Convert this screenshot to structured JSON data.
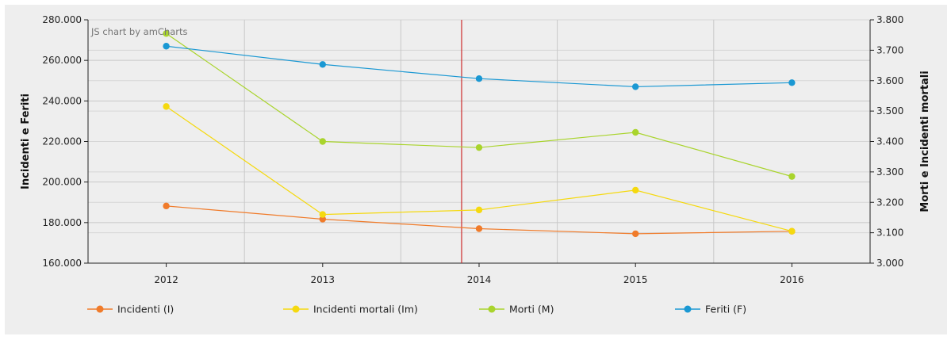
{
  "chart_data": {
    "type": "line",
    "credit": "JS chart by amCharts",
    "categories": [
      "2012",
      "2013",
      "2014",
      "2015",
      "2016"
    ],
    "left_axis": {
      "label": "Incidenti e Feriti",
      "min": 160000,
      "max": 280000,
      "step": 20000,
      "ticks": [
        "160.000",
        "180.000",
        "200.000",
        "220.000",
        "240.000",
        "260.000",
        "280.000"
      ]
    },
    "right_axis": {
      "label": "Morti e Incidenti mortali",
      "min": 3000,
      "max": 3800,
      "step": 100,
      "ticks": [
        "3.000",
        "3.100",
        "3.200",
        "3.300",
        "3.400",
        "3.500",
        "3.600",
        "3.700",
        "3.800"
      ]
    },
    "cursor_category": "2014",
    "grid": true,
    "legend_position": "bottom",
    "series": [
      {
        "name": "Incidenti (I)",
        "axis": "left",
        "color": "#f07b2a",
        "values": [
          188200,
          181700,
          177000,
          174500,
          175700
        ]
      },
      {
        "name": "Incidenti mortali (Im)",
        "axis": "right",
        "color": "#f5d90f",
        "values": [
          3515,
          3160,
          3175,
          3240,
          3105
        ]
      },
      {
        "name": "Morti (M)",
        "axis": "right",
        "color": "#a9d42c",
        "values": [
          3755,
          3400,
          3380,
          3430,
          3285
        ]
      },
      {
        "name": "Feriti (F)",
        "axis": "left",
        "color": "#1a98d3",
        "values": [
          267000,
          258000,
          251000,
          247000,
          249000
        ]
      }
    ]
  }
}
